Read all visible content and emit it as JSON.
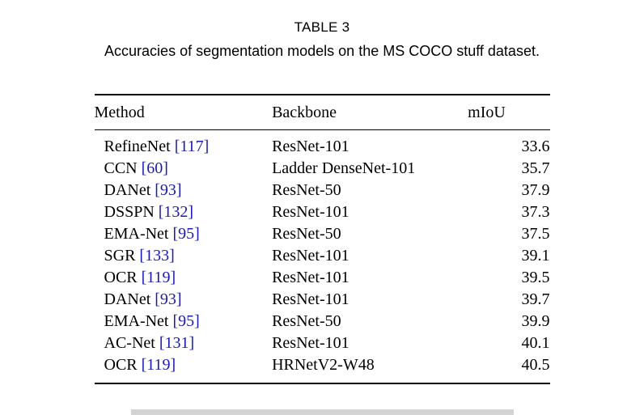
{
  "caption": {
    "label": "TABLE 3",
    "text": "Accuracies of segmentation models on the MS COCO stuff dataset."
  },
  "table": {
    "headers": [
      "Method",
      "Backbone",
      "mIoU"
    ],
    "rows": [
      {
        "method": "RefineNet",
        "citation": "[117]",
        "backbone": "ResNet-101",
        "miou": "33.6"
      },
      {
        "method": "CCN",
        "citation": "[60]",
        "backbone": "Ladder DenseNet-101",
        "miou": "35.7"
      },
      {
        "method": "DANet",
        "citation": "[93]",
        "backbone": "ResNet-50",
        "miou": "37.9"
      },
      {
        "method": "DSSPN",
        "citation": "[132]",
        "backbone": "ResNet-101",
        "miou": "37.3"
      },
      {
        "method": "EMA-Net",
        "citation": "[95]",
        "backbone": "ResNet-50",
        "miou": "37.5"
      },
      {
        "method": "SGR",
        "citation": "[133]",
        "backbone": "ResNet-101",
        "miou": "39.1"
      },
      {
        "method": "OCR",
        "citation": "[119]",
        "backbone": "ResNet-101",
        "miou": "39.5"
      },
      {
        "method": "DANet",
        "citation": "[93]",
        "backbone": "ResNet-101",
        "miou": "39.7"
      },
      {
        "method": "EMA-Net",
        "citation": "[95]",
        "backbone": "ResNet-50",
        "miou": "39.9"
      },
      {
        "method": "AC-Net",
        "citation": "[131]",
        "backbone": "ResNet-101",
        "miou": "40.1"
      },
      {
        "method": "OCR",
        "citation": "[119]",
        "backbone": "HRNetV2-W48",
        "miou": "40.5"
      }
    ]
  },
  "colors": {
    "citation": "#1b1bb0",
    "text": "#000000",
    "rule": "#000000",
    "bottom_bar": "#d4d4d4"
  },
  "chart_data": {
    "type": "table",
    "title": "TABLE 3 — Accuracies of segmentation models on the MS COCO stuff dataset.",
    "columns": [
      "Method",
      "Backbone",
      "mIoU"
    ],
    "rows": [
      [
        "RefineNet [117]",
        "ResNet-101",
        33.6
      ],
      [
        "CCN [60]",
        "Ladder DenseNet-101",
        35.7
      ],
      [
        "DANet [93]",
        "ResNet-50",
        37.9
      ],
      [
        "DSSPN [132]",
        "ResNet-101",
        37.3
      ],
      [
        "EMA-Net [95]",
        "ResNet-50",
        37.5
      ],
      [
        "SGR [133]",
        "ResNet-101",
        39.1
      ],
      [
        "OCR [119]",
        "ResNet-101",
        39.5
      ],
      [
        "DANet [93]",
        "ResNet-101",
        39.7
      ],
      [
        "EMA-Net [95]",
        "ResNet-50",
        39.9
      ],
      [
        "AC-Net [131]",
        "ResNet-101",
        40.1
      ],
      [
        "OCR [119]",
        "HRNetV2-W48",
        40.5
      ]
    ]
  }
}
